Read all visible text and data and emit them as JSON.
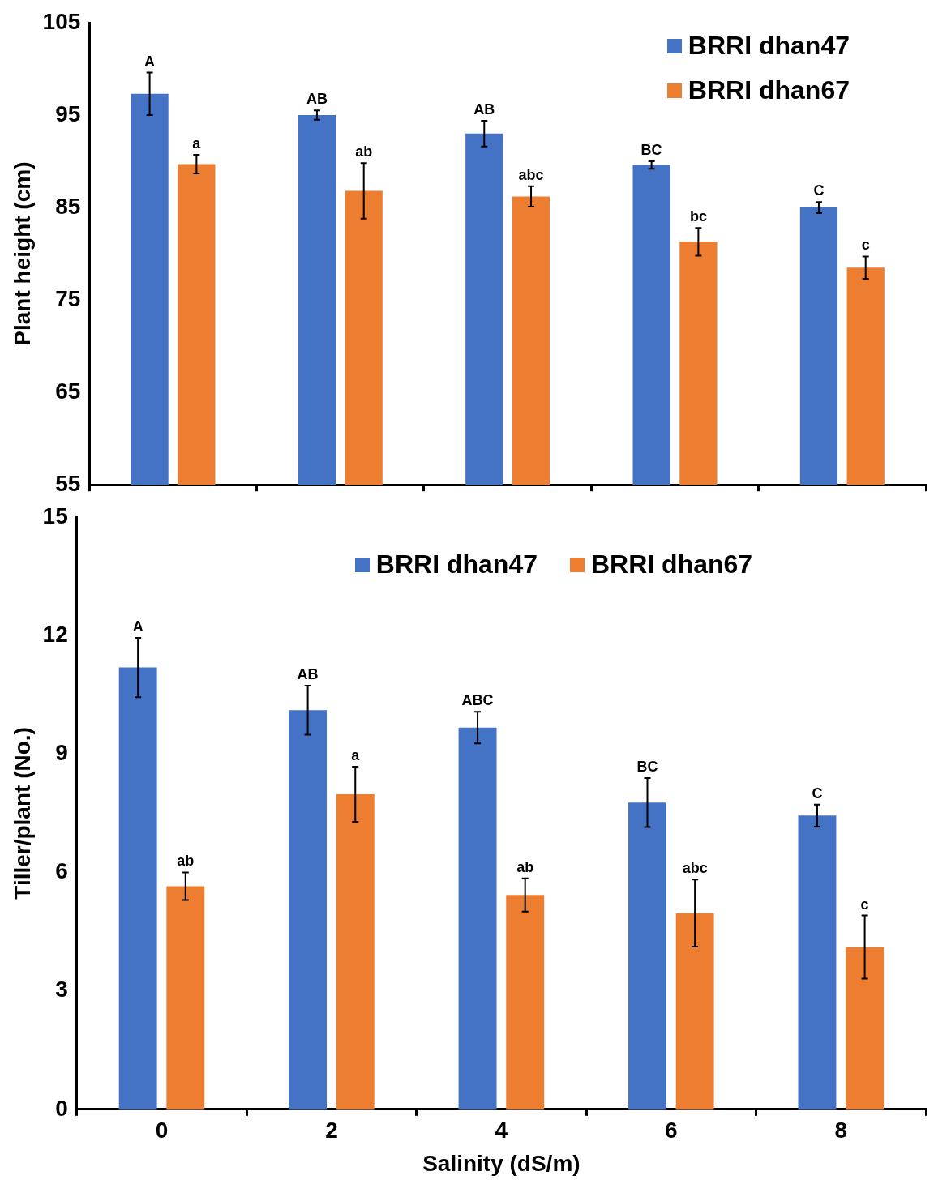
{
  "chart_data": [
    {
      "type": "bar",
      "ylabel": "Plant height (cm)",
      "categories": [
        "0",
        "2",
        "4",
        "6",
        "8"
      ],
      "ylim": [
        55,
        105
      ],
      "yticks": [
        55,
        65,
        75,
        85,
        95,
        105
      ],
      "grid": false,
      "legend": "top right",
      "tick_labels": "y",
      "series": [
        {
          "name": "BRRI dhan47",
          "color": "#4472c4",
          "values": [
            97.3,
            95.0,
            93.0,
            89.6,
            85.0
          ],
          "errors": [
            2.3,
            0.5,
            1.4,
            0.4,
            0.6
          ],
          "value_labels": [
            "A",
            "AB",
            "AB",
            "BC",
            "C"
          ]
        },
        {
          "name": "BRRI dhan67",
          "color": "#ed7d31",
          "values": [
            89.7,
            86.8,
            86.2,
            81.3,
            78.5
          ],
          "errors": [
            1.0,
            3.0,
            1.1,
            1.5,
            1.2
          ],
          "value_labels": [
            "a",
            "ab",
            "abc",
            "bc",
            "c"
          ]
        }
      ]
    },
    {
      "type": "bar",
      "xlabel": "Salinity (dS/m)",
      "ylabel": "Tiller/plant (No.)",
      "categories": [
        "0",
        "2",
        "4",
        "6",
        "8"
      ],
      "ylim": [
        0,
        15
      ],
      "yticks": [
        0,
        3,
        6,
        9,
        12,
        15
      ],
      "grid": false,
      "legend": "top",
      "series": [
        {
          "name": "BRRI dhan47",
          "color": "#4472c4",
          "values": [
            11.19,
            10.11,
            9.67,
            7.77,
            7.44
          ],
          "errors": [
            0.75,
            0.62,
            0.4,
            0.62,
            0.28
          ],
          "value_labels": [
            "A",
            "AB",
            "ABC",
            "BC",
            "C"
          ]
        },
        {
          "name": "BRRI dhan67",
          "color": "#ed7d31",
          "values": [
            5.65,
            7.98,
            5.43,
            4.97,
            4.11
          ],
          "errors": [
            0.35,
            0.7,
            0.42,
            0.85,
            0.8
          ],
          "value_labels": [
            "ab",
            "a",
            "ab",
            "abc",
            "c"
          ]
        }
      ]
    }
  ]
}
